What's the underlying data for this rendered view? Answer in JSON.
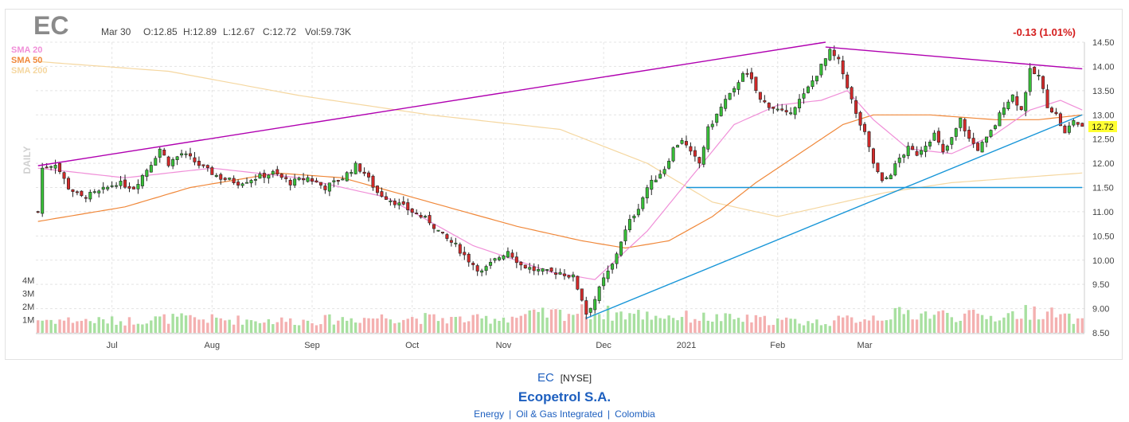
{
  "header": {
    "ticker": "EC",
    "date": "Mar 30",
    "open": "O:12.85",
    "high": "H:12.89",
    "low": "L:12.67",
    "close": "C:12.72",
    "volume": "Vol:59.73K",
    "change": "-0.13 (1.01%)",
    "period": "DAILY"
  },
  "legend": [
    {
      "name": "SMA 20",
      "color": "#f08fd8"
    },
    {
      "name": "SMA 50",
      "color": "#f0883a"
    },
    {
      "name": "SMA 200",
      "color": "#f5d7a0"
    }
  ],
  "colors": {
    "up": "#38c038",
    "down": "#d42a2a",
    "vol_up": "#a8e0a0",
    "vol_down": "#f4b0b0",
    "purple": "#b000b0",
    "blue": "#1896d8",
    "last_bg": "#ffff33"
  },
  "footer": {
    "ticker": "EC",
    "exchange": "[NYSE]",
    "company": "Ecopetrol S.A.",
    "sector": "Energy",
    "industry": "Oil & Gas Integrated",
    "country": "Colombia"
  },
  "chart_data": {
    "type": "candlestick",
    "ylim": [
      8.5,
      14.5
    ],
    "y_ticks": [
      "14.50",
      "14.00",
      "13.50",
      "13.00",
      "12.50",
      "12.00",
      "11.50",
      "11.00",
      "10.50",
      "10.00",
      "9.50",
      "9.00",
      "8.50"
    ],
    "x_labels": [
      "Jul",
      "Aug",
      "Sep",
      "Oct",
      "Nov",
      "Dec",
      "2021",
      "Feb",
      "Mar"
    ],
    "volume_ticks": [
      "4M",
      "3M",
      "2M",
      "1M"
    ],
    "last_price": "12.72",
    "price_path": [
      [
        0,
        11.0
      ],
      [
        1,
        11.9
      ],
      [
        4,
        12.0
      ],
      [
        7,
        11.5
      ],
      [
        10,
        11.3
      ],
      [
        14,
        11.4
      ],
      [
        18,
        11.6
      ],
      [
        22,
        11.5
      ],
      [
        26,
        12.0
      ],
      [
        28,
        12.3
      ],
      [
        30,
        12.0
      ],
      [
        33,
        12.2
      ],
      [
        35,
        12.1
      ],
      [
        38,
        11.9
      ],
      [
        42,
        11.7
      ],
      [
        46,
        11.6
      ],
      [
        50,
        11.7
      ],
      [
        54,
        11.8
      ],
      [
        58,
        11.6
      ],
      [
        62,
        11.7
      ],
      [
        66,
        11.5
      ],
      [
        70,
        11.7
      ],
      [
        73,
        11.95
      ],
      [
        75,
        11.8
      ],
      [
        78,
        11.4
      ],
      [
        82,
        11.2
      ],
      [
        86,
        11.0
      ],
      [
        90,
        10.8
      ],
      [
        93,
        10.5
      ],
      [
        96,
        10.3
      ],
      [
        99,
        10.0
      ],
      [
        102,
        9.75
      ],
      [
        105,
        10.0
      ],
      [
        108,
        10.2
      ],
      [
        111,
        9.9
      ],
      [
        114,
        9.8
      ],
      [
        117,
        9.75
      ],
      [
        120,
        9.75
      ],
      [
        123,
        9.65
      ],
      [
        125,
        9.2
      ],
      [
        126,
        8.9
      ],
      [
        128,
        9.2
      ],
      [
        130,
        9.6
      ],
      [
        132,
        9.9
      ],
      [
        134,
        10.4
      ],
      [
        136,
        10.8
      ],
      [
        138,
        11.1
      ],
      [
        140,
        11.5
      ],
      [
        142,
        11.7
      ],
      [
        144,
        11.9
      ],
      [
        146,
        12.3
      ],
      [
        148,
        12.5
      ],
      [
        150,
        12.2
      ],
      [
        152,
        12.0
      ],
      [
        154,
        12.7
      ],
      [
        156,
        13.0
      ],
      [
        158,
        13.3
      ],
      [
        160,
        13.5
      ],
      [
        162,
        13.9
      ],
      [
        164,
        13.7
      ],
      [
        166,
        13.3
      ],
      [
        168,
        13.2
      ],
      [
        170,
        13.1
      ],
      [
        172,
        13.0
      ],
      [
        174,
        13.2
      ],
      [
        176,
        13.4
      ],
      [
        178,
        13.7
      ],
      [
        180,
        14.0
      ],
      [
        182,
        14.3
      ],
      [
        184,
        14.1
      ],
      [
        186,
        13.6
      ],
      [
        188,
        13.0
      ],
      [
        190,
        12.6
      ],
      [
        192,
        12.0
      ],
      [
        194,
        11.6
      ],
      [
        196,
        11.8
      ],
      [
        198,
        12.1
      ],
      [
        200,
        12.3
      ],
      [
        202,
        12.2
      ],
      [
        204,
        12.4
      ],
      [
        206,
        12.6
      ],
      [
        208,
        12.2
      ],
      [
        210,
        12.5
      ],
      [
        212,
        12.9
      ],
      [
        214,
        12.5
      ],
      [
        216,
        12.3
      ],
      [
        218,
        12.5
      ],
      [
        220,
        12.8
      ],
      [
        222,
        13.2
      ],
      [
        224,
        13.4
      ],
      [
        226,
        13.1
      ],
      [
        228,
        13.9
      ],
      [
        230,
        13.8
      ],
      [
        232,
        13.2
      ],
      [
        234,
        13.0
      ],
      [
        236,
        12.6
      ],
      [
        238,
        12.9
      ],
      [
        240,
        12.72
      ]
    ],
    "volume_path": [
      [
        0,
        1.0
      ],
      [
        20,
        0.9
      ],
      [
        30,
        1.1
      ],
      [
        60,
        0.9
      ],
      [
        80,
        1.2
      ],
      [
        100,
        1.0
      ],
      [
        125,
        1.6
      ],
      [
        150,
        1.2
      ],
      [
        180,
        0.8
      ],
      [
        200,
        1.5
      ],
      [
        220,
        1.2
      ],
      [
        230,
        1.7
      ],
      [
        240,
        0.8
      ]
    ],
    "sma20_path": [
      [
        0,
        11.9
      ],
      [
        20,
        11.7
      ],
      [
        40,
        11.9
      ],
      [
        60,
        11.7
      ],
      [
        80,
        11.3
      ],
      [
        100,
        10.3
      ],
      [
        118,
        9.75
      ],
      [
        128,
        9.6
      ],
      [
        140,
        10.6
      ],
      [
        150,
        11.7
      ],
      [
        160,
        12.8
      ],
      [
        170,
        13.2
      ],
      [
        180,
        13.3
      ],
      [
        186,
        13.5
      ],
      [
        192,
        12.9
      ],
      [
        200,
        12.3
      ],
      [
        210,
        12.2
      ],
      [
        220,
        12.6
      ],
      [
        228,
        13.1
      ],
      [
        235,
        13.3
      ],
      [
        240,
        13.1
      ]
    ],
    "sma50_path": [
      [
        0,
        10.8
      ],
      [
        20,
        11.1
      ],
      [
        35,
        11.5
      ],
      [
        55,
        11.8
      ],
      [
        70,
        11.7
      ],
      [
        90,
        11.2
      ],
      [
        110,
        10.7
      ],
      [
        125,
        10.4
      ],
      [
        135,
        10.25
      ],
      [
        145,
        10.4
      ],
      [
        155,
        10.9
      ],
      [
        165,
        11.6
      ],
      [
        175,
        12.2
      ],
      [
        185,
        12.8
      ],
      [
        192,
        13.0
      ],
      [
        205,
        13.0
      ],
      [
        220,
        12.9
      ],
      [
        230,
        12.9
      ],
      [
        240,
        13.0
      ]
    ],
    "sma200_path": [
      [
        0,
        14.1
      ],
      [
        30,
        13.9
      ],
      [
        60,
        13.4
      ],
      [
        90,
        13.0
      ],
      [
        120,
        12.7
      ],
      [
        140,
        12.0
      ],
      [
        155,
        11.2
      ],
      [
        170,
        10.9
      ],
      [
        180,
        11.1
      ],
      [
        195,
        11.4
      ],
      [
        210,
        11.6
      ],
      [
        225,
        11.7
      ],
      [
        240,
        11.8
      ]
    ],
    "trendlines": [
      {
        "color": "#b000b0",
        "points": [
          [
            0,
            11.95
          ],
          [
            181,
            14.5
          ]
        ]
      },
      {
        "color": "#b000b0",
        "points": [
          [
            181,
            14.4
          ],
          [
            240,
            13.95
          ]
        ]
      },
      {
        "color": "#1896d8",
        "points": [
          [
            126,
            8.8
          ],
          [
            240,
            13.0
          ]
        ]
      },
      {
        "color": "#1896d8",
        "points": [
          [
            149,
            11.5
          ],
          [
            240,
            11.5
          ]
        ]
      }
    ]
  }
}
